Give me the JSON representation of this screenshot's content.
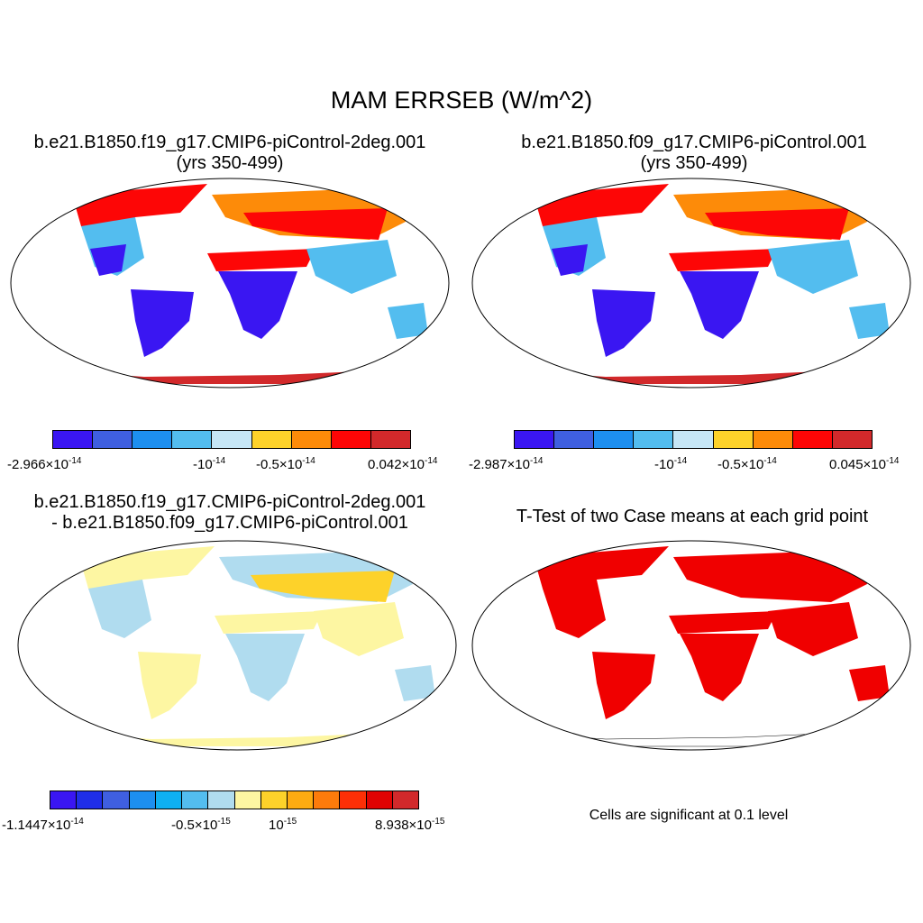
{
  "title": "MAM ERRSEB (W/m^2)",
  "panels": {
    "p1": {
      "title_line1": "b.e21.B1850.f19_g17.CMIP6-piControl-2deg.001",
      "title_line2": "(yrs 350-499)",
      "colorbar": [
        "#3a16f2",
        "#3f5fe0",
        "#1d8ff0",
        "#53bdef",
        "#c6e6f6",
        "#fdd22a",
        "#fd8b09",
        "#fd0606",
        "#d2292b"
      ],
      "tick_labels": {
        "left": {
          "base": "-2.966×10",
          "exp": "-14"
        },
        "mid1": {
          "base": "-10",
          "exp": "-14"
        },
        "mid2": {
          "base": "-0.5×10",
          "exp": "-14"
        },
        "right": {
          "base": "0.042×10",
          "exp": "-14"
        }
      }
    },
    "p2": {
      "title_line1": "b.e21.B1850.f09_g17.CMIP6-piControl.001",
      "title_line2": "(yrs 350-499)",
      "colorbar": [
        "#3a16f2",
        "#3f5fe0",
        "#1d8ff0",
        "#53bdef",
        "#c6e6f6",
        "#fdd22a",
        "#fd8b09",
        "#fd0606",
        "#d2292b"
      ],
      "tick_labels": {
        "left": {
          "base": "-2.987×10",
          "exp": "-14"
        },
        "mid1": {
          "base": "-10",
          "exp": "-14"
        },
        "mid2": {
          "base": "-0.5×10",
          "exp": "-14"
        },
        "right": {
          "base": "0.045×10",
          "exp": "-14"
        }
      }
    },
    "p3": {
      "title_line1": "b.e21.B1850.f19_g17.CMIP6-piControl-2deg.001",
      "title_line2": "- b.e21.B1850.f09_g17.CMIP6-piControl.001",
      "colorbar": [
        "#3a16f2",
        "#1f2ee8",
        "#3f5fe0",
        "#1d8ff0",
        "#0fb0f2",
        "#53bdef",
        "#b0dcef",
        "#fdf6a2",
        "#fdd22a",
        "#fdab11",
        "#fd7b0b",
        "#fd2f06",
        "#e00202",
        "#d2292b"
      ],
      "tick_labels": {
        "left": {
          "base": "-1.1447×10",
          "exp": "-14"
        },
        "mid1": {
          "base": "-0.5×10",
          "exp": "-15"
        },
        "mid2": {
          "base": "10",
          "exp": "-15"
        },
        "right": {
          "base": "8.938×10",
          "exp": "-15"
        }
      }
    },
    "p4": {
      "title_line1": "T-Test of two Case means at each grid point",
      "note": "Cells are significant at 0.1 level"
    }
  },
  "colors": {
    "land_cold": "#3a16f2",
    "land_mid": "#53bdef",
    "land_warm": "#fd0606",
    "sig": "#f00000"
  }
}
